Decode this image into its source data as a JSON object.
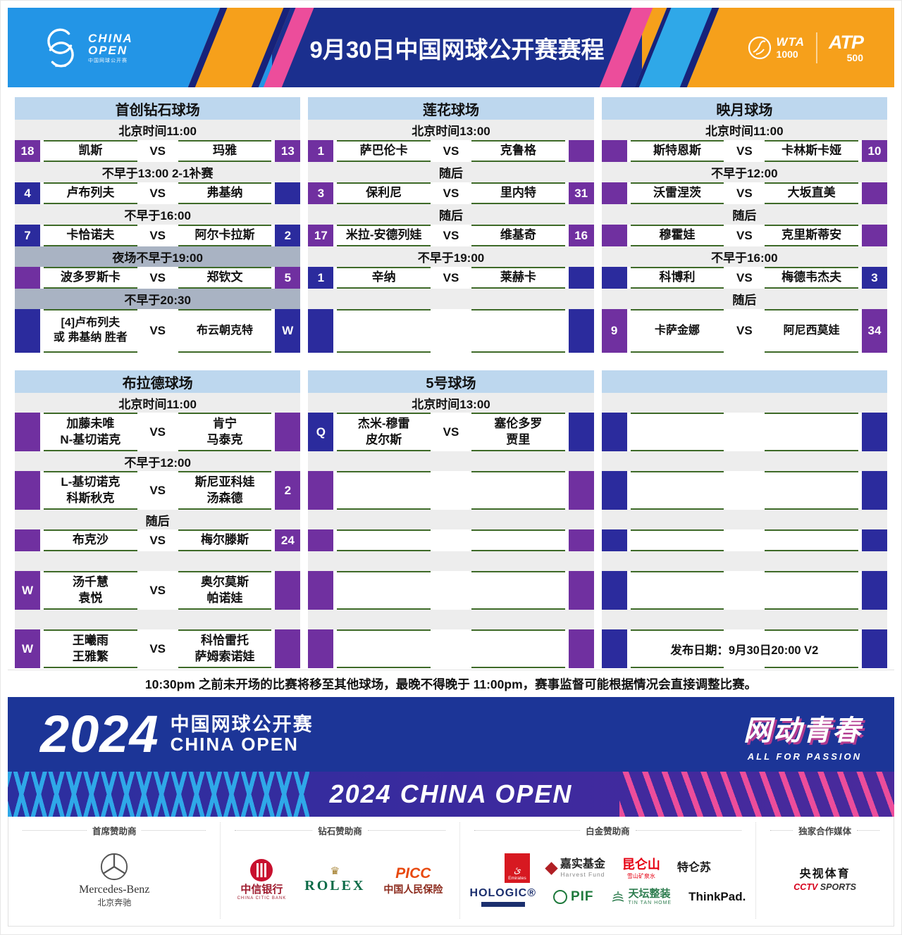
{
  "header": {
    "title": "9月30日中国网球公开赛赛程",
    "logo": {
      "line1": "CHINA",
      "line2": "OPEN",
      "sub": "中国网球公开赛"
    },
    "wta": {
      "name": "WTA",
      "level": "1000"
    },
    "atp": {
      "name": "ATP",
      "level": "500"
    }
  },
  "colors": {
    "purple_badge": "#7030a0",
    "blue_badge": "#2b2b9d",
    "court_header": "#bdd7ee",
    "note_row": "#ededed",
    "note_row_dark": "#a9b3c3",
    "cell_line": "#3e6a28",
    "header_blue": "#2395e6",
    "header_navy": "#1b2f8e",
    "header_orange": "#f6a01b",
    "accent_pink": "#ec4d9b",
    "banner_blue": "#1c3597"
  },
  "sections": [
    {
      "courts": [
        {
          "name": "首创钻石球场",
          "rows": [
            {
              "t": "note",
              "text": "北京时间11:00"
            },
            {
              "t": "match",
              "h": "s",
              "lb": "18",
              "lc": "p",
              "p1": [
                "凯斯"
              ],
              "vs": "VS",
              "p2": [
                "玛雅"
              ],
              "rb": "13",
              "rc": "p"
            },
            {
              "t": "note",
              "text": "不早于13:00 2-1补赛"
            },
            {
              "t": "match",
              "h": "s",
              "lb": "4",
              "lc": "b",
              "p1": [
                "卢布列夫"
              ],
              "vs": "VS",
              "p2": [
                "弗基纳"
              ],
              "rb": "",
              "rc": "b"
            },
            {
              "t": "note",
              "text": "不早于16:00"
            },
            {
              "t": "match",
              "h": "s",
              "lb": "7",
              "lc": "b",
              "p1": [
                "卡恰诺夫"
              ],
              "vs": "VS",
              "p2": [
                "阿尔卡拉斯"
              ],
              "rb": "2",
              "rc": "b"
            },
            {
              "t": "noted",
              "text": "夜场不早于19:00"
            },
            {
              "t": "match",
              "h": "s",
              "lb": "",
              "lc": "p",
              "p1": [
                "波多罗斯卡"
              ],
              "vs": "VS",
              "p2": [
                "郑钦文"
              ],
              "rb": "5",
              "rc": "p"
            },
            {
              "t": "noted",
              "text": "不早于20:30"
            },
            {
              "t": "match",
              "h": "l",
              "lb": "",
              "lc": "b",
              "p1": [
                "[4]卢布列夫",
                "或 弗基纳 胜者"
              ],
              "vs": "VS",
              "p2": [
                "布云朝克特"
              ],
              "rb": "W",
              "rc": "b"
            }
          ]
        },
        {
          "name": "莲花球场",
          "rows": [
            {
              "t": "note",
              "text": "北京时间13:00"
            },
            {
              "t": "match",
              "h": "s",
              "lb": "1",
              "lc": "p",
              "p1": [
                "萨巴伦卡"
              ],
              "vs": "VS",
              "p2": [
                "克鲁格"
              ],
              "rb": "",
              "rc": "p"
            },
            {
              "t": "note",
              "text": "随后"
            },
            {
              "t": "match",
              "h": "s",
              "lb": "3",
              "lc": "p",
              "p1": [
                "保利尼"
              ],
              "vs": "VS",
              "p2": [
                "里内特"
              ],
              "rb": "31",
              "rc": "p"
            },
            {
              "t": "note",
              "text": "随后"
            },
            {
              "t": "match",
              "h": "s",
              "lb": "17",
              "lc": "p",
              "p1": [
                "米拉-安德列娃"
              ],
              "vs": "VS",
              "p2": [
                "维基奇"
              ],
              "rb": "16",
              "rc": "p"
            },
            {
              "t": "note",
              "text": "不早于19:00"
            },
            {
              "t": "match",
              "h": "s",
              "lb": "1",
              "lc": "b",
              "p1": [
                "辛纳"
              ],
              "vs": "VS",
              "p2": [
                "莱赫卡"
              ],
              "rb": "",
              "rc": "b"
            },
            {
              "t": "note",
              "text": ""
            },
            {
              "t": "match",
              "h": "l",
              "lb": "",
              "lc": "b",
              "p1": [],
              "vs": "",
              "p2": [],
              "rb": "",
              "rc": "b"
            }
          ]
        },
        {
          "name": "映月球场",
          "rows": [
            {
              "t": "note",
              "text": "北京时间11:00"
            },
            {
              "t": "match",
              "h": "s",
              "lb": "",
              "lc": "p",
              "p1": [
                "斯特恩斯"
              ],
              "vs": "VS",
              "p2": [
                "卡林斯卡娅"
              ],
              "rb": "10",
              "rc": "p"
            },
            {
              "t": "note",
              "text": "不早于12:00"
            },
            {
              "t": "match",
              "h": "s",
              "lb": "",
              "lc": "p",
              "p1": [
                "沃雷涅茨"
              ],
              "vs": "VS",
              "p2": [
                "大坂直美"
              ],
              "rb": "",
              "rc": "p"
            },
            {
              "t": "note",
              "text": "随后"
            },
            {
              "t": "match",
              "h": "s",
              "lb": "",
              "lc": "p",
              "p1": [
                "穆霍娃"
              ],
              "vs": "VS",
              "p2": [
                "克里斯蒂安"
              ],
              "rb": "",
              "rc": "p"
            },
            {
              "t": "note",
              "text": "不早于16:00"
            },
            {
              "t": "match",
              "h": "s",
              "lb": "",
              "lc": "b",
              "p1": [
                "科博利"
              ],
              "vs": "VS",
              "p2": [
                "梅德韦杰夫"
              ],
              "rb": "3",
              "rc": "b"
            },
            {
              "t": "note",
              "text": "随后"
            },
            {
              "t": "match",
              "h": "l",
              "lb": "9",
              "lc": "p",
              "p1": [
                "卡萨金娜"
              ],
              "vs": "VS",
              "p2": [
                "阿尼西莫娃"
              ],
              "rb": "34",
              "rc": "p"
            }
          ]
        }
      ]
    },
    {
      "courts": [
        {
          "name": "布拉德球场",
          "rows": [
            {
              "t": "note",
              "text": "北京时间11:00"
            },
            {
              "t": "match",
              "h": "m",
              "lb": "",
              "lc": "p",
              "p1": [
                "加藤未唯",
                "N-基切诺克"
              ],
              "vs": "VS",
              "p2": [
                "肯宁",
                "马泰克"
              ],
              "rb": "",
              "rc": "p"
            },
            {
              "t": "note",
              "text": "不早于12:00"
            },
            {
              "t": "match",
              "h": "m",
              "lb": "",
              "lc": "p",
              "p1": [
                "L-基切诺克",
                "科斯秋克"
              ],
              "vs": "VS",
              "p2": [
                "斯尼亚科娃",
                "汤森德"
              ],
              "rb": "2",
              "rc": "p"
            },
            {
              "t": "note",
              "text": "随后"
            },
            {
              "t": "match",
              "h": "s",
              "lb": "",
              "lc": "p",
              "p1": [
                "布克沙"
              ],
              "vs": "VS",
              "p2": [
                "梅尔滕斯"
              ],
              "rb": "24",
              "rc": "p"
            },
            {
              "t": "note",
              "text": ""
            },
            {
              "t": "match",
              "h": "m",
              "lb": "W",
              "lc": "p",
              "p1": [
                "汤千慧",
                "袁悦"
              ],
              "vs": "VS",
              "p2": [
                "奥尔莫斯",
                "帕诺娃"
              ],
              "rb": "",
              "rc": "p"
            },
            {
              "t": "note",
              "text": ""
            },
            {
              "t": "match",
              "h": "m",
              "lb": "W",
              "lc": "p",
              "p1": [
                "王曦雨",
                "王雅繁"
              ],
              "vs": "VS",
              "p2": [
                "科恰雷托",
                "萨姆索诺娃"
              ],
              "rb": "",
              "rc": "p"
            }
          ]
        },
        {
          "name": "5号球场",
          "rows": [
            {
              "t": "note",
              "text": "北京时间13:00"
            },
            {
              "t": "match",
              "h": "m",
              "lb": "Q",
              "lc": "b",
              "p1": [
                "杰米-穆雷",
                "皮尔斯"
              ],
              "vs": "VS",
              "p2": [
                "塞伦多罗",
                "贾里"
              ],
              "rb": "",
              "rc": "b"
            },
            {
              "t": "note",
              "text": ""
            },
            {
              "t": "match",
              "h": "m",
              "lb": "",
              "lc": "p",
              "p1": [],
              "vs": "",
              "p2": [],
              "rb": "",
              "rc": "p"
            },
            {
              "t": "note",
              "text": ""
            },
            {
              "t": "match",
              "h": "s",
              "lb": "",
              "lc": "p",
              "p1": [],
              "vs": "",
              "p2": [],
              "rb": "",
              "rc": "p"
            },
            {
              "t": "note",
              "text": ""
            },
            {
              "t": "match",
              "h": "m",
              "lb": "",
              "lc": "p",
              "p1": [],
              "vs": "",
              "p2": [],
              "rb": "",
              "rc": "p"
            },
            {
              "t": "note",
              "text": ""
            },
            {
              "t": "match",
              "h": "m",
              "lb": "",
              "lc": "p",
              "p1": [],
              "vs": "",
              "p2": [],
              "rb": "",
              "rc": "p"
            }
          ]
        },
        {
          "name": "",
          "rows": [
            {
              "t": "note",
              "text": ""
            },
            {
              "t": "match",
              "h": "m",
              "lb": "",
              "lc": "b",
              "p1": [],
              "vs": "",
              "p2": [],
              "rb": "",
              "rc": "b"
            },
            {
              "t": "note",
              "text": ""
            },
            {
              "t": "match",
              "h": "m",
              "lb": "",
              "lc": "b",
              "p1": [],
              "vs": "",
              "p2": [],
              "rb": "",
              "rc": "b"
            },
            {
              "t": "note",
              "text": ""
            },
            {
              "t": "match",
              "h": "s",
              "lb": "",
              "lc": "b",
              "p1": [],
              "vs": "",
              "p2": [],
              "rb": "",
              "rc": "b"
            },
            {
              "t": "note",
              "text": ""
            },
            {
              "t": "match",
              "h": "m",
              "lb": "",
              "lc": "b",
              "p1": [],
              "vs": "",
              "p2": [],
              "rb": "",
              "rc": "b"
            },
            {
              "t": "note",
              "text": ""
            },
            {
              "t": "publish",
              "h": "m",
              "lb": "",
              "lc": "b",
              "text": "发布日期：9月30日20:00 V2",
              "rb": "",
              "rc": "b"
            }
          ]
        }
      ]
    }
  ],
  "notice": "10:30pm 之前未开场的比赛将移至其他球场，最晚不得晚于 11:00pm，赛事监督可能根据情况会直接调整比赛。",
  "banner": {
    "year": "2024",
    "name_cn": "中国网球公开赛",
    "name_en": "CHINA OPEN",
    "slogan_cn": "网动青春",
    "slogan_en": "ALL FOR PASSION",
    "strip_text": "2024 CHINA OPEN"
  },
  "sponsors": {
    "labels": [
      "首席赞助商",
      "钻石赞助商",
      "白金赞助商",
      "独家合作媒体"
    ],
    "mercedes": {
      "name": "Mercedes-Benz",
      "sub": "北京奔驰"
    },
    "citic": {
      "name": "中信银行",
      "sub": "CHINA CITIC BANK"
    },
    "rolex": {
      "name": "ROLEX"
    },
    "picc": {
      "name": "PICC",
      "sub": "中国人民保险"
    },
    "emirates": {
      "name": "Emirates"
    },
    "harvest": {
      "name": "嘉实基金",
      "sub": "Harvest Fund"
    },
    "kunlun": {
      "name": "昆仑山",
      "sub": "雪山矿泉水"
    },
    "telunsu": {
      "name": "特仑苏"
    },
    "hologic": {
      "name": "HOLOGIC®"
    },
    "pif": {
      "name": "PIF"
    },
    "tiantan": {
      "name": "天坛整装",
      "sub": "TIN TAN HOME"
    },
    "thinkpad": {
      "name": "ThinkPad."
    },
    "cctv": {
      "name": "央视体育",
      "sub_red": "CCTV",
      "sub_dark": "SPORTS"
    }
  }
}
